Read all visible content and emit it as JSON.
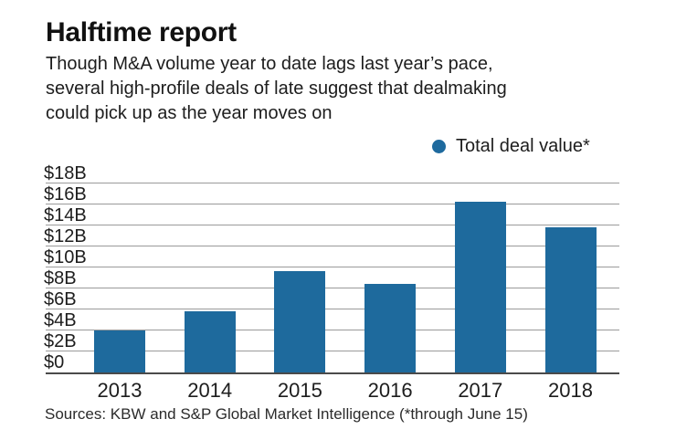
{
  "header": {
    "title": "Halftime report",
    "subtitle_lines": [
      "Though M&A volume year to date lags last year’s pace,",
      "several high-profile deals of late suggest that dealmaking",
      "could pick up as the year moves on"
    ]
  },
  "legend": {
    "label": "Total deal value*",
    "marker_icon": "circle",
    "marker_color": "#1e6a9e"
  },
  "chart_data": {
    "type": "bar",
    "title": "Halftime report",
    "categories": [
      "2013",
      "2014",
      "2015",
      "2016",
      "2017",
      "2018"
    ],
    "values": [
      4.0,
      5.8,
      9.6,
      8.4,
      16.2,
      13.8
    ],
    "series_name": "Total deal value*",
    "y_unit": "$B (billions of dollars)",
    "y_ticks": [
      "$18B",
      "$16B",
      "$14B",
      "$12B",
      "$10B",
      "$8B",
      "$6B",
      "$4B",
      "$2B",
      "$0"
    ],
    "y_tick_values": [
      18,
      16,
      14,
      12,
      10,
      8,
      6,
      4,
      2,
      0
    ],
    "ylim": [
      0,
      18
    ],
    "grid": true,
    "legend_position": "top-right",
    "bar_color": "#1e6a9d",
    "gridline_color": "#9a9a9a",
    "axis_color": "#4a4a4a"
  },
  "source": {
    "text": "Sources: KBW and S&P Global Market Intelligence (*through June 15)"
  },
  "colors": {
    "background": "#ffffff",
    "text": "#1d1d1d",
    "accent_blue": "#1e6a9d"
  }
}
